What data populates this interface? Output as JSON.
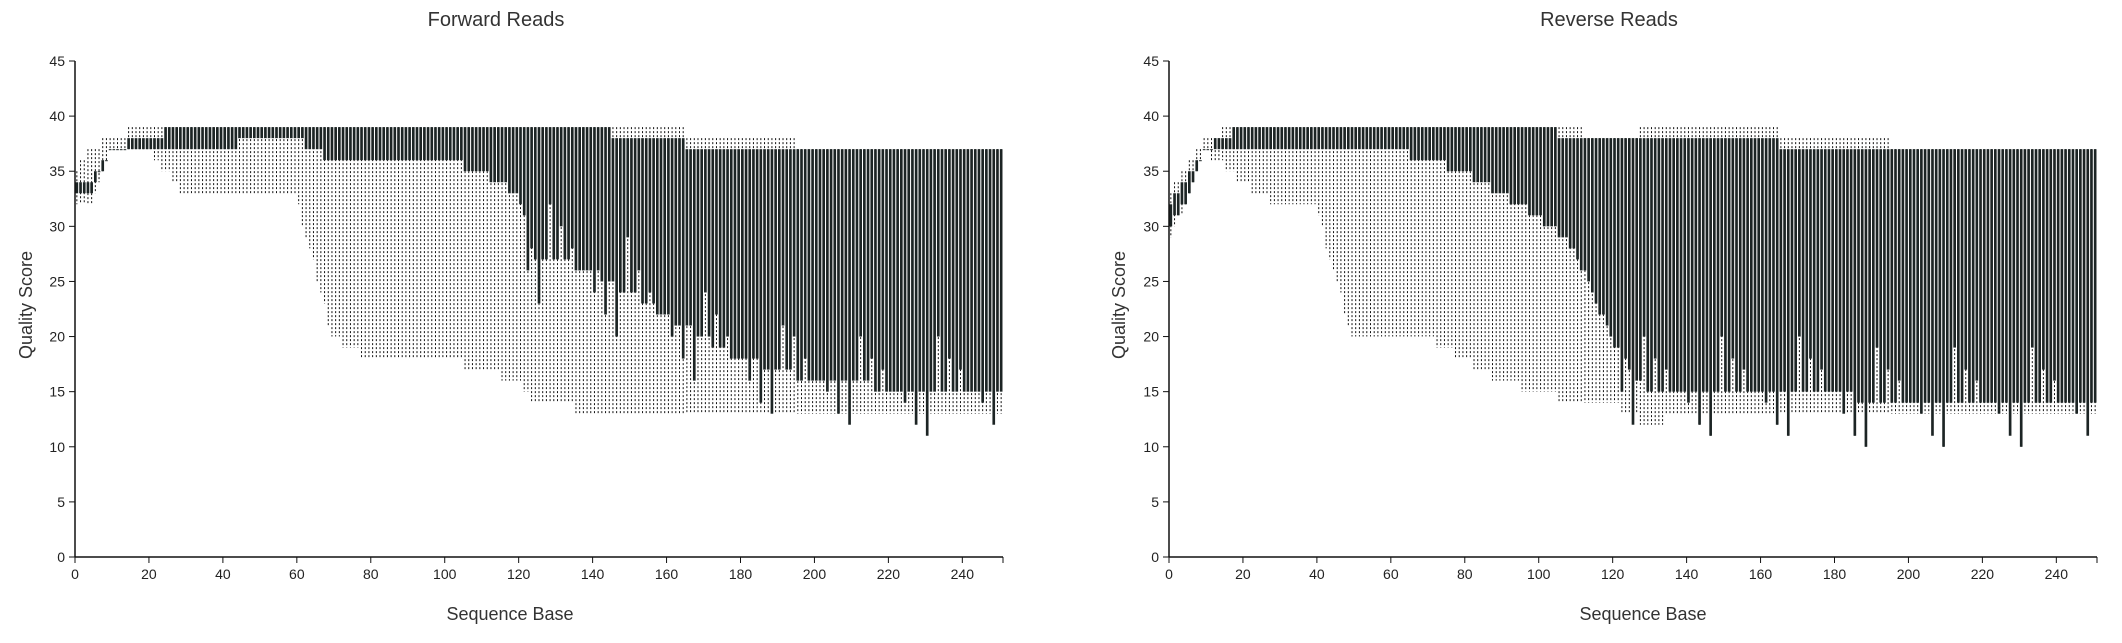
{
  "chart_data": [
    {
      "type": "box",
      "title": "Forward Reads",
      "xlabel": "Sequence Base",
      "ylabel": "Quality Score",
      "xlim": [
        0,
        251
      ],
      "ylim": [
        0,
        45
      ],
      "xticks": [
        0,
        20,
        40,
        60,
        80,
        100,
        120,
        140,
        160,
        180,
        200,
        220,
        240
      ],
      "yticks": [
        0,
        5,
        10,
        15,
        20,
        25,
        30,
        35,
        40,
        45
      ],
      "grid": false,
      "legend": "none",
      "colors": {
        "box": "#1c2424",
        "whisker": "#111111"
      },
      "profile": {
        "base": [
          1,
          5,
          10,
          20,
          30,
          40,
          50,
          60,
          70,
          80,
          90,
          100,
          110,
          120,
          125,
          130,
          140,
          150,
          160,
          170,
          180,
          190,
          200,
          210,
          220,
          230,
          240,
          251
        ],
        "upper_whisker": [
          35,
          37,
          38,
          39,
          39,
          39,
          39,
          39,
          39,
          39,
          39,
          39,
          39,
          39,
          39,
          39,
          39,
          39,
          39,
          38,
          38,
          38,
          37,
          37,
          37,
          37,
          37,
          37
        ],
        "q3": [
          34,
          34,
          37,
          38,
          39,
          39,
          39,
          39,
          39,
          39,
          39,
          39,
          39,
          39,
          39,
          39,
          39,
          38,
          38,
          37,
          37,
          37,
          37,
          37,
          37,
          37,
          37,
          37
        ],
        "q1": [
          33,
          33,
          37,
          37,
          37,
          37,
          38,
          38,
          36,
          36,
          36,
          36,
          35,
          33,
          27,
          27,
          26,
          24,
          22,
          20,
          18,
          17,
          16,
          16,
          15,
          15,
          15,
          15
        ],
        "lower_whisker": [
          32,
          32,
          37,
          37,
          33,
          33,
          33,
          33,
          20,
          18,
          18,
          18,
          17,
          16,
          14,
          14,
          13,
          13,
          13,
          13,
          13,
          13,
          13,
          13,
          13,
          13,
          13,
          13
        ]
      }
    },
    {
      "type": "box",
      "title": "Reverse Reads",
      "xlabel": "Sequence Base",
      "ylabel": "Quality Score",
      "xlim": [
        0,
        251
      ],
      "ylim": [
        0,
        45
      ],
      "xticks": [
        0,
        20,
        40,
        60,
        80,
        100,
        120,
        140,
        160,
        180,
        200,
        220,
        240
      ],
      "yticks": [
        0,
        5,
        10,
        15,
        20,
        25,
        30,
        35,
        40,
        45
      ],
      "grid": false,
      "legend": "none",
      "colors": {
        "box": "#1c2424",
        "whisker": "#111111"
      },
      "profile": {
        "base": [
          1,
          5,
          10,
          20,
          30,
          40,
          50,
          60,
          70,
          80,
          90,
          100,
          110,
          115,
          120,
          125,
          130,
          140,
          150,
          160,
          170,
          180,
          190,
          200,
          210,
          220,
          230,
          240,
          251
        ],
        "upper_whisker": [
          33,
          35,
          38,
          39,
          39,
          39,
          39,
          39,
          39,
          39,
          39,
          39,
          39,
          38,
          38,
          38,
          39,
          39,
          39,
          39,
          38,
          38,
          38,
          37,
          37,
          37,
          37,
          37,
          37
        ],
        "q3": [
          32,
          34,
          37,
          39,
          39,
          39,
          39,
          39,
          39,
          39,
          39,
          39,
          38,
          38,
          38,
          38,
          38,
          38,
          38,
          38,
          37,
          37,
          37,
          37,
          37,
          37,
          37,
          37,
          37
        ],
        "q1": [
          30,
          32,
          37,
          37,
          37,
          37,
          37,
          37,
          36,
          35,
          33,
          31,
          28,
          24,
          20,
          17,
          15,
          15,
          15,
          15,
          15,
          15,
          14,
          14,
          14,
          14,
          14,
          14,
          14
        ],
        "lower_whisker": [
          29,
          32,
          37,
          34,
          32,
          32,
          20,
          20,
          20,
          18,
          16,
          15,
          14,
          14,
          14,
          13,
          12,
          13,
          13,
          13,
          13,
          13,
          13,
          13,
          13,
          13,
          13,
          13,
          13
        ]
      }
    }
  ]
}
